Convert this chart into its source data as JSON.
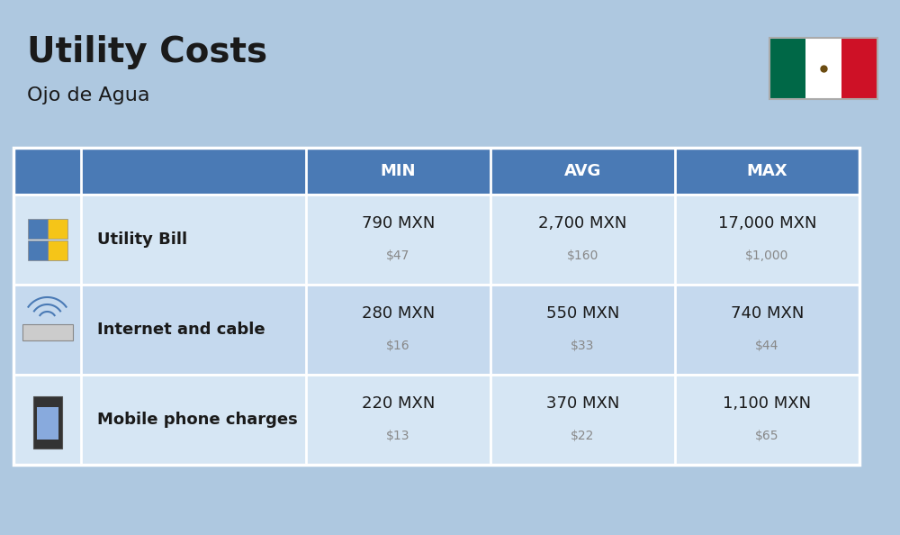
{
  "title": "Utility Costs",
  "subtitle": "Ojo de Agua",
  "background_color": "#aec8e0",
  "header_bg_color": "#4a7ab5",
  "header_text_color": "#ffffff",
  "row_bg_color_1": "#d6e6f4",
  "row_bg_color_2": "#c5d9ee",
  "table_border_color": "#ffffff",
  "rows": [
    {
      "label": "Utility Bill",
      "min_mxn": "790 MXN",
      "min_usd": "$47",
      "avg_mxn": "2,700 MXN",
      "avg_usd": "$160",
      "max_mxn": "17,000 MXN",
      "max_usd": "$1,000"
    },
    {
      "label": "Internet and cable",
      "min_mxn": "280 MXN",
      "min_usd": "$16",
      "avg_mxn": "550 MXN",
      "avg_usd": "$33",
      "max_mxn": "740 MXN",
      "max_usd": "$44"
    },
    {
      "label": "Mobile phone charges",
      "min_mxn": "220 MXN",
      "min_usd": "$13",
      "avg_mxn": "370 MXN",
      "avg_usd": "$22",
      "max_mxn": "1,100 MXN",
      "max_usd": "$65"
    }
  ],
  "title_fontsize": 28,
  "subtitle_fontsize": 16,
  "header_fontsize": 13,
  "label_fontsize": 13,
  "value_fontsize": 13,
  "usd_fontsize": 10,
  "usd_color": "#888888",
  "flag_colors": [
    "#006847",
    "#ffffff",
    "#ce1126"
  ]
}
